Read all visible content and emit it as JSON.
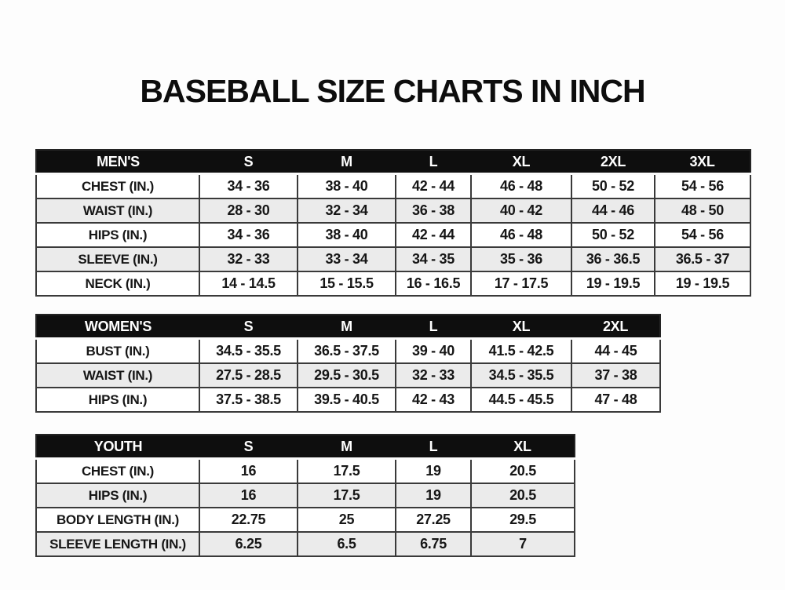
{
  "page": {
    "title": "BASEBALL SIZE CHARTS IN INCH"
  },
  "tables": [
    {
      "name": "mens-size-table",
      "header": [
        "MEN'S",
        "S",
        "M",
        "L",
        "XL",
        "2XL",
        "3XL"
      ],
      "rows": [
        [
          "CHEST (IN.)",
          "34 - 36",
          "38 - 40",
          "42 - 44",
          "46 - 48",
          "50 - 52",
          "54 - 56"
        ],
        [
          "WAIST (IN.)",
          "28 - 30",
          "32 - 34",
          "36 - 38",
          "40 - 42",
          "44 - 46",
          "48 - 50"
        ],
        [
          "HIPS (IN.)",
          "34 - 36",
          "38 - 40",
          "42 - 44",
          "46 - 48",
          "50 - 52",
          "54 - 56"
        ],
        [
          "SLEEVE (IN.)",
          "32 - 33",
          "33 - 34",
          "34 - 35",
          "35 - 36",
          "36 - 36.5",
          "36.5 - 37"
        ],
        [
          "NECK (IN.)",
          "14 - 14.5",
          "15 - 15.5",
          "16 - 16.5",
          "17 - 17.5",
          "19 - 19.5",
          "19 - 19.5"
        ]
      ]
    },
    {
      "name": "womens-size-table",
      "header": [
        "WOMEN'S",
        "S",
        "M",
        "L",
        "XL",
        "2XL"
      ],
      "rows": [
        [
          "BUST (IN.)",
          "34.5 - 35.5",
          "36.5 - 37.5",
          "39 - 40",
          "41.5 - 42.5",
          "44 - 45"
        ],
        [
          "WAIST (IN.)",
          "27.5 - 28.5",
          "29.5 - 30.5",
          "32 - 33",
          "34.5 - 35.5",
          "37 - 38"
        ],
        [
          "HIPS (IN.)",
          "37.5 - 38.5",
          "39.5 - 40.5",
          "42 - 43",
          "44.5 - 45.5",
          "47 - 48"
        ]
      ]
    },
    {
      "name": "youth-size-table",
      "header": [
        "YOUTH",
        "S",
        "M",
        "L",
        "XL"
      ],
      "rows": [
        [
          "CHEST (IN.)",
          "16",
          "17.5",
          "19",
          "20.5"
        ],
        [
          "HIPS (IN.)",
          "16",
          "17.5",
          "19",
          "20.5"
        ],
        [
          "BODY LENGTH (IN.)",
          "22.75",
          "25",
          "27.25",
          "29.5"
        ],
        [
          "SLEEVE LENGTH (IN.)",
          "6.25",
          "6.5",
          "6.75",
          "7"
        ]
      ]
    }
  ],
  "colors": {
    "header_bg": "#0e0e0e",
    "header_text": "#ffffff",
    "row_alt_bg": "#ebebeb",
    "border": "#3a3a3a",
    "text": "#161616",
    "page_bg": "#fdfdfd"
  }
}
